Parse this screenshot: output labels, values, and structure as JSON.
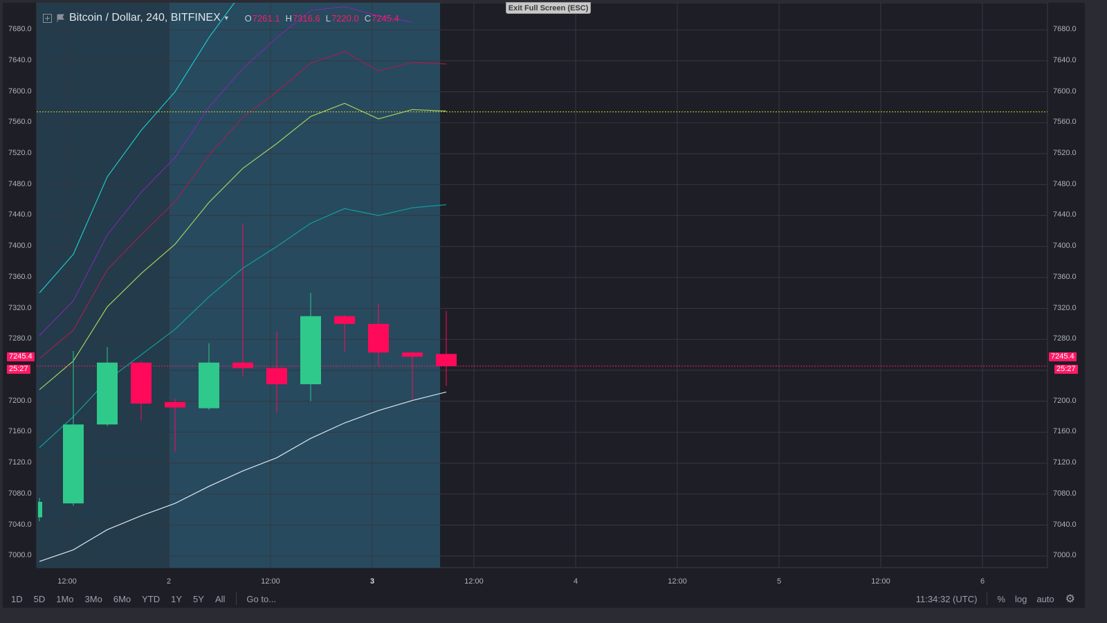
{
  "chart": {
    "symbol": "Bitcoin / Dollar, 240, BITFINEX",
    "ohlc": {
      "open_key": "O",
      "open": "7261.1",
      "high_key": "H",
      "high": "7316.6",
      "low_key": "L",
      "low": "7220.0",
      "close_key": "C",
      "close": "7245.4"
    },
    "exit_fullscreen": "Exit Full Screen (ESC)",
    "current_price": "7245.4",
    "countdown": "25:27"
  },
  "price_axis": {
    "labels": [
      "7680.0",
      "7640.0",
      "7600.0",
      "7560.0",
      "7520.0",
      "7480.0",
      "7440.0",
      "7400.0",
      "7360.0",
      "7320.0",
      "7280.0",
      "7200.0",
      "7160.0",
      "7120.0",
      "7080.0",
      "7040.0",
      "7000.0"
    ]
  },
  "time_axis": {
    "labels": [
      {
        "text": "12:00",
        "bold": false
      },
      {
        "text": "2",
        "bold": false
      },
      {
        "text": "12:00",
        "bold": false
      },
      {
        "text": "3",
        "bold": true
      },
      {
        "text": "12:00",
        "bold": false
      },
      {
        "text": "4",
        "bold": false
      },
      {
        "text": "12:00",
        "bold": false
      },
      {
        "text": "5",
        "bold": false
      },
      {
        "text": "12:00",
        "bold": false
      },
      {
        "text": "6",
        "bold": false
      }
    ]
  },
  "chart_data": {
    "type": "candlestick",
    "title": "Bitcoin / Dollar, 240, BITFINEX",
    "ylim": [
      6985,
      7715
    ],
    "y_ticks": [
      7000,
      7040,
      7080,
      7120,
      7160,
      7200,
      7240,
      7280,
      7320,
      7360,
      7400,
      7440,
      7480,
      7520,
      7560,
      7600,
      7640,
      7680
    ],
    "candles": [
      {
        "o": 7050,
        "h": 7075,
        "l": 7045,
        "c": 7070
      },
      {
        "o": 7068,
        "h": 7265,
        "l": 7065,
        "c": 7170
      },
      {
        "o": 7170,
        "h": 7270,
        "l": 7168,
        "c": 7250
      },
      {
        "o": 7250,
        "h": 7252,
        "l": 7175,
        "c": 7197
      },
      {
        "o": 7199,
        "h": 7203,
        "l": 7135,
        "c": 7192
      },
      {
        "o": 7191,
        "h": 7275,
        "l": 7189,
        "c": 7250
      },
      {
        "o": 7250,
        "h": 7430,
        "l": 7232,
        "c": 7243
      },
      {
        "o": 7243,
        "h": 7290,
        "l": 7185,
        "c": 7222
      },
      {
        "o": 7222,
        "h": 7340,
        "l": 7200,
        "c": 7310
      },
      {
        "o": 7310,
        "h": 7312,
        "l": 7263,
        "c": 7300
      },
      {
        "o": 7300,
        "h": 7326,
        "l": 7245,
        "c": 7263
      },
      {
        "o": 7263,
        "h": 7264,
        "l": 7202,
        "c": 7261
      },
      {
        "o": 7261.1,
        "h": 7316.6,
        "l": 7220.0,
        "c": 7245.4
      }
    ],
    "horizontal_line": 7574,
    "current_price_line": 7245.4
  },
  "bottom_bar": {
    "ranges": [
      "1D",
      "5D",
      "1Mo",
      "3Mo",
      "6Mo",
      "YTD",
      "1Y",
      "5Y",
      "All"
    ],
    "goto": "Go to...",
    "clock": "11:34:32 (UTC)",
    "percent": "%",
    "log": "log",
    "auto": "auto"
  },
  "colors": {
    "up": "#2ec98b",
    "down": "#ff0a5a",
    "background": "#1e1f26",
    "session_fill": "#2b5a72"
  }
}
